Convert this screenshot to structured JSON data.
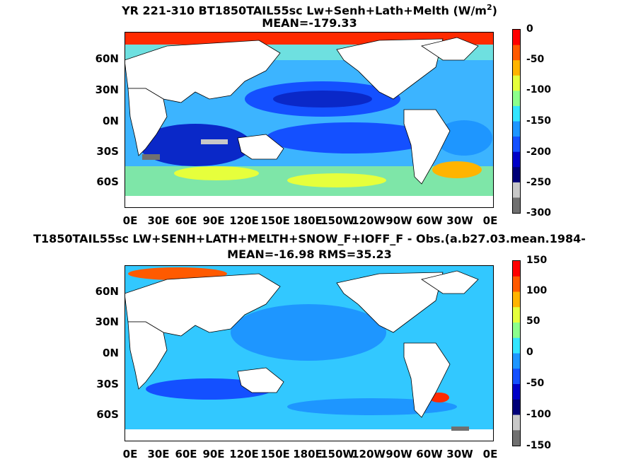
{
  "panels": [
    {
      "title_prefix": "YR 221-310 BT1850TAIL55sc Lw+Senh+Lath+Melth (W/m",
      "title_sup": "2",
      "title_suffix": ")",
      "subtitle": "MEAN=-179.33",
      "colorbar": {
        "ticks": [
          "0",
          "-50",
          "-100",
          "-150",
          "-200",
          "-250",
          "-300"
        ],
        "colors": [
          "#ff0000",
          "#ff5a00",
          "#ffb400",
          "#e6ff3c",
          "#8cff8c",
          "#32e6ff",
          "#1e96ff",
          "#1450ff",
          "#0000c8",
          "#000078",
          "#c8c8c8",
          "#707070"
        ]
      },
      "lat_labels": [
        "60N",
        "30N",
        "0N",
        "30S",
        "60S"
      ],
      "lon_labels": [
        "0E",
        "30E",
        "60E",
        "90E",
        "120E",
        "150E",
        "180E",
        "150W",
        "120W",
        "90W",
        "60W",
        "30W",
        "0E"
      ]
    },
    {
      "title": "T1850TAIL55sc LW+SENH+LATH+MELTH+SNOW_F+IOFF_F - Obs.(a.b27.03.mean.1984-",
      "subtitle": "MEAN=-16.98 RMS=35.23",
      "colorbar": {
        "ticks": [
          "150",
          "100",
          "50",
          "0",
          "-50",
          "-100",
          "-150"
        ],
        "colors": [
          "#ff0000",
          "#ff5a00",
          "#ffb400",
          "#e6ff3c",
          "#8cff8c",
          "#32e6ff",
          "#1e96ff",
          "#1450ff",
          "#0000c8",
          "#000078",
          "#c8c8c8",
          "#707070"
        ]
      },
      "lat_labels": [
        "60N",
        "30N",
        "0N",
        "30S",
        "60S"
      ],
      "lon_labels": [
        "0E",
        "30E",
        "60E",
        "90E",
        "120E",
        "150E",
        "180E",
        "150W",
        "120W",
        "90W",
        "60W",
        "30W",
        "0E"
      ]
    }
  ]
}
